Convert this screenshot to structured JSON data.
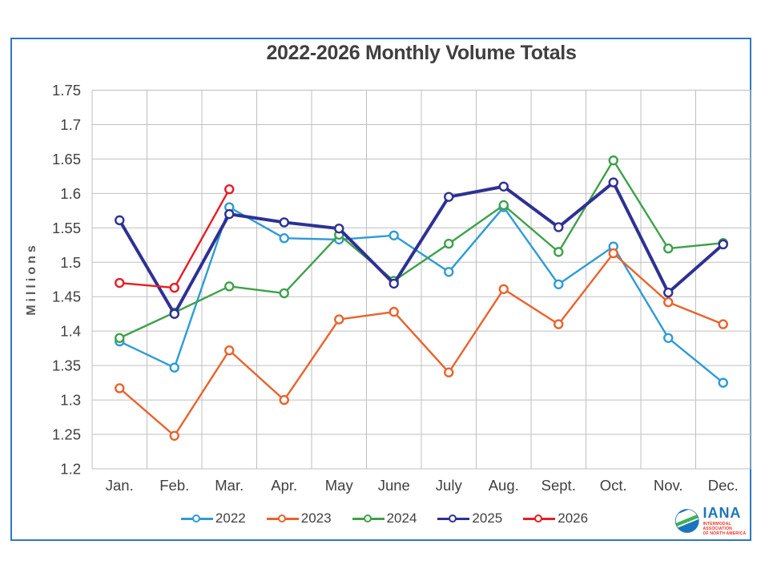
{
  "page": {
    "border_color": "#2E78BE",
    "background": "#FFFFFF"
  },
  "chart_data": {
    "type": "line",
    "title": "2022-2026 Monthly Volume Totals",
    "xlabel": "",
    "ylabel": "Millions",
    "categories": [
      "Jan.",
      "Feb.",
      "Mar.",
      "Apr.",
      "May",
      "June",
      "July",
      "Aug.",
      "Sept.",
      "Oct.",
      "Nov.",
      "Dec."
    ],
    "ylim": [
      1.2,
      1.75
    ],
    "grid": true,
    "legend_position": "bottom",
    "gridline_color": "#BFBFBF",
    "axis_text_color": "#404040",
    "yticks": [
      {
        "v": 1.2,
        "label": "1.2"
      },
      {
        "v": 1.25,
        "label": "1.25"
      },
      {
        "v": 1.3,
        "label": "1.3"
      },
      {
        "v": 1.35,
        "label": "1.35"
      },
      {
        "v": 1.4,
        "label": "1.4"
      },
      {
        "v": 1.45,
        "label": "1.45"
      },
      {
        "v": 1.5,
        "label": "1.5"
      },
      {
        "v": 1.55,
        "label": "1.55"
      },
      {
        "v": 1.6,
        "label": "1.6"
      },
      {
        "v": 1.65,
        "label": "1.65"
      },
      {
        "v": 1.7,
        "label": "1.7"
      },
      {
        "v": 1.75,
        "label": "1.75"
      }
    ],
    "series": [
      {
        "name": "2022",
        "color": "#2E9BD6",
        "line_width": 2.4,
        "values": [
          1.385,
          1.347,
          1.58,
          1.535,
          1.533,
          1.539,
          1.486,
          1.58,
          1.468,
          1.523,
          1.39,
          1.325
        ]
      },
      {
        "name": "2023",
        "color": "#E8632C",
        "line_width": 2.4,
        "values": [
          1.317,
          1.248,
          1.372,
          1.3,
          1.417,
          1.428,
          1.34,
          1.461,
          1.41,
          1.513,
          1.442,
          1.41
        ]
      },
      {
        "name": "2024",
        "color": "#3EA14A",
        "line_width": 2.4,
        "values": [
          1.39,
          1.427,
          1.465,
          1.455,
          1.54,
          1.473,
          1.527,
          1.583,
          1.515,
          1.648,
          1.52,
          1.528
        ]
      },
      {
        "name": "2025",
        "color": "#2E3192",
        "line_width": 4,
        "values": [
          1.561,
          1.425,
          1.57,
          1.558,
          1.549,
          1.469,
          1.595,
          1.61,
          1.551,
          1.616,
          1.456,
          1.526
        ]
      },
      {
        "name": "2026",
        "color": "#E51E25",
        "line_width": 2.4,
        "values": [
          1.47,
          1.463,
          1.606,
          null,
          null,
          null,
          null,
          null,
          null,
          null,
          null,
          null
        ]
      }
    ]
  },
  "logo": {
    "name": "IANA",
    "tagline_line1": "INTERMODAL ASSOCIATION",
    "tagline_line2": "OF NORTH AMERICA"
  }
}
